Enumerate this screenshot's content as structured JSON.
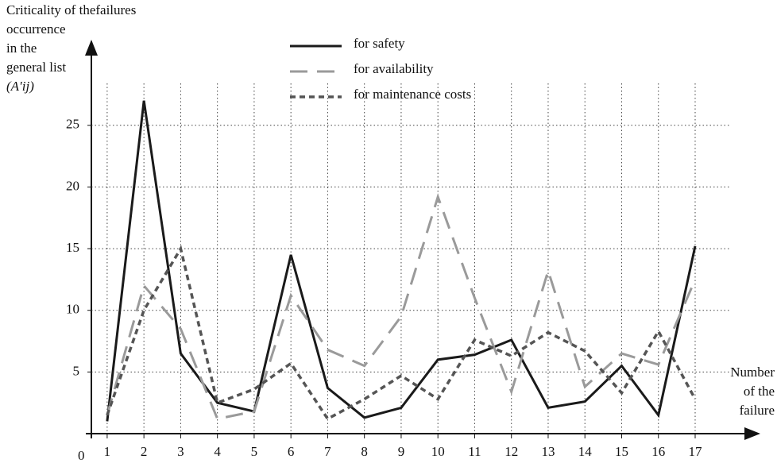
{
  "chart_data": {
    "type": "line",
    "y_label": [
      "Criticality of thefailures",
      "occurrence",
      "in the",
      "general list",
      "(A′ij)"
    ],
    "x_label": [
      "Number",
      "of the",
      "failure"
    ],
    "origin_label": "0",
    "x": [
      1,
      2,
      3,
      4,
      5,
      6,
      7,
      8,
      9,
      10,
      11,
      12,
      13,
      14,
      15,
      16,
      17
    ],
    "xticks": [
      1,
      2,
      3,
      4,
      5,
      6,
      7,
      8,
      9,
      10,
      11,
      12,
      13,
      14,
      15,
      16,
      17
    ],
    "xlim": [
      0.57,
      18.6
    ],
    "ylim": [
      0,
      28.4
    ],
    "yticks": [
      5,
      10,
      15,
      20,
      25
    ],
    "grid": true,
    "series": [
      {
        "name": "for safety",
        "color": "#1a1a1a",
        "dash": "solid",
        "values": [
          1,
          27,
          6.5,
          2.5,
          1.8,
          14.5,
          3.7,
          1.3,
          2.1,
          6,
          6.4,
          7.6,
          2.1,
          2.6,
          5.5,
          1.5,
          15.2
        ]
      },
      {
        "name": "for availability",
        "color": "#9a9a9a",
        "dash": "long",
        "values": [
          1.5,
          12,
          8.5,
          1.2,
          1.8,
          11.2,
          6.8,
          5.5,
          9.5,
          19.2,
          11,
          3.4,
          13.2,
          3.8,
          6.5,
          5.6,
          12.5
        ]
      },
      {
        "name": "for maintenance costs",
        "color": "#555555",
        "dash": "short",
        "values": [
          1.5,
          10,
          15,
          2.5,
          3.6,
          5.7,
          1.2,
          2.8,
          4.7,
          2.8,
          7.6,
          6.3,
          8.2,
          6.7,
          3.3,
          8.3,
          2.8
        ]
      }
    ]
  }
}
